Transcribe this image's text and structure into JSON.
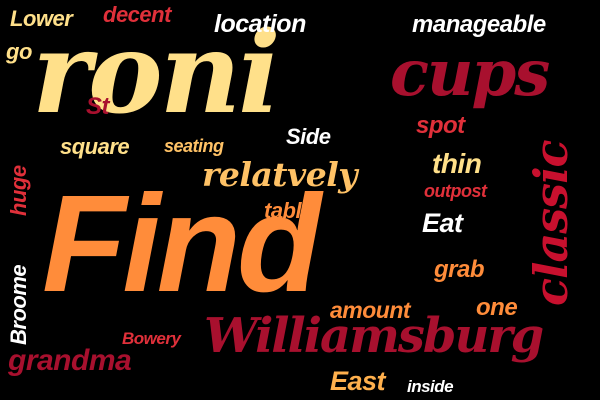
{
  "palette": {
    "background": "#000000",
    "cream": "#FFE08A",
    "orange": "#FF8C3A",
    "amber": "#FFB04D",
    "crimson": "#A8102E",
    "red": "#E0303A",
    "white": "#FFFFFF"
  },
  "words": [
    {
      "text": "roni",
      "color": "#FFE08A"
    },
    {
      "text": "Find",
      "color": "#FF8C3A"
    },
    {
      "text": "cups",
      "color": "#A8102E"
    },
    {
      "text": "Williamsburg",
      "color": "#A8102E"
    },
    {
      "text": "classic",
      "color": "#C8102E"
    },
    {
      "text": "relatvely",
      "color": "#FFC266"
    },
    {
      "text": "manageable",
      "color": "#FFFFFF"
    },
    {
      "text": "location",
      "color": "#FFFFFF"
    },
    {
      "text": "Lower",
      "color": "#FFE08A"
    },
    {
      "text": "decent",
      "color": "#E0303A"
    },
    {
      "text": "go",
      "color": "#FFE08A"
    },
    {
      "text": "St",
      "color": "#A8102E"
    },
    {
      "text": "square",
      "color": "#FFE08A"
    },
    {
      "text": "seating",
      "color": "#FFC266"
    },
    {
      "text": "Side",
      "color": "#FFFFFF"
    },
    {
      "text": "spot",
      "color": "#E0303A"
    },
    {
      "text": "thin",
      "color": "#FFE08A"
    },
    {
      "text": "outpost",
      "color": "#E0303A"
    },
    {
      "text": "table",
      "color": "#FF8C3A"
    },
    {
      "text": "Eat",
      "color": "#FFFFFF"
    },
    {
      "text": "huge",
      "color": "#E0303A"
    },
    {
      "text": "Broome",
      "color": "#FFFFFF"
    },
    {
      "text": "grab",
      "color": "#FF8C3A"
    },
    {
      "text": "amount",
      "color": "#FF8C3A"
    },
    {
      "text": "one",
      "color": "#FF8C3A"
    },
    {
      "text": "Bowery",
      "color": "#E0303A"
    },
    {
      "text": "grandma",
      "color": "#A8102E"
    },
    {
      "text": "East",
      "color": "#FFB04D"
    },
    {
      "text": "inside",
      "color": "#FFFFFF"
    }
  ]
}
